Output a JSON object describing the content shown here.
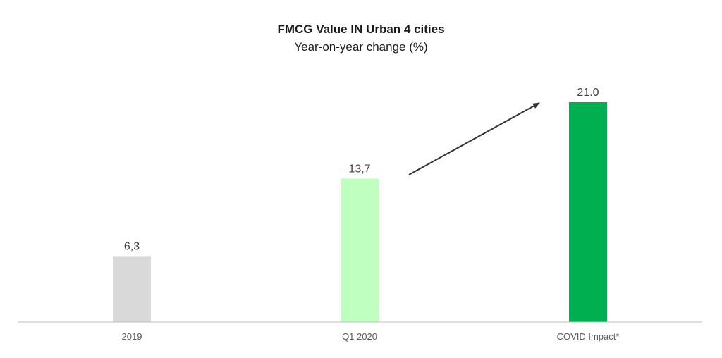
{
  "chart_data": {
    "type": "bar",
    "title": "FMCG Value IN Urban 4 cities",
    "subtitle": "Year-on-year change (%)",
    "categories": [
      "2019",
      "Q1 2020",
      "COVID Impact*"
    ],
    "values": [
      6.3,
      13.7,
      21.0
    ],
    "data_labels": [
      "6,3",
      "13,7",
      "21.0"
    ],
    "colors": [
      "#d9d9d9",
      "#bfffbf",
      "#00b050"
    ],
    "ylim": [
      0,
      22
    ],
    "grid": false,
    "legend": "none",
    "annotation": {
      "type": "arrow",
      "from_category": "Q1 2020",
      "to_category": "COVID Impact*",
      "color": "#333333"
    }
  }
}
